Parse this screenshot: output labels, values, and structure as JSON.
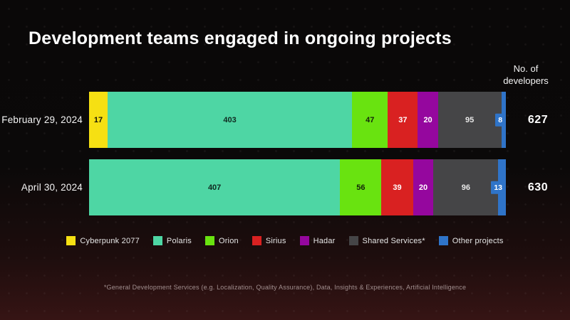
{
  "title": "Development teams engaged in ongoing projects",
  "axis_header": "No. of developers",
  "footnote": "*General Development Services (e.g. Localization, Quality Assurance), Data, Insights & Experiences, Artificial Intelligence",
  "chart_data": {
    "type": "bar",
    "orientation": "horizontal-stacked",
    "title": "Development teams engaged in ongoing projects",
    "value_axis_label": "No. of developers",
    "legend_position": "bottom",
    "grid": false,
    "categories": [
      "February 29, 2024",
      "April 30, 2024"
    ],
    "series": [
      {
        "name": "Cyberpunk 2077",
        "color": "#f6e013",
        "label_color": "#151508",
        "values": [
          17,
          0
        ]
      },
      {
        "name": "Polaris",
        "color": "#4ed6a4",
        "label_color": "#102a20",
        "values": [
          403,
          407
        ]
      },
      {
        "name": "Orion",
        "color": "#69e310",
        "label_color": "#13250a",
        "values": [
          47,
          56
        ]
      },
      {
        "name": "Sirius",
        "color": "#d92121",
        "label_color": "#ffffff",
        "values": [
          37,
          39
        ]
      },
      {
        "name": "Hadar",
        "color": "#95079e",
        "label_color": "#ffffff",
        "values": [
          20,
          20
        ]
      },
      {
        "name": "Shared Services*",
        "color": "#454547",
        "label_color": "#e8e8e8",
        "values": [
          95,
          96
        ]
      },
      {
        "name": "Other projects",
        "color": "#2f74c9",
        "label_color": "#ffffff",
        "values": [
          8,
          13
        ]
      }
    ],
    "totals": [
      627,
      630
    ]
  }
}
